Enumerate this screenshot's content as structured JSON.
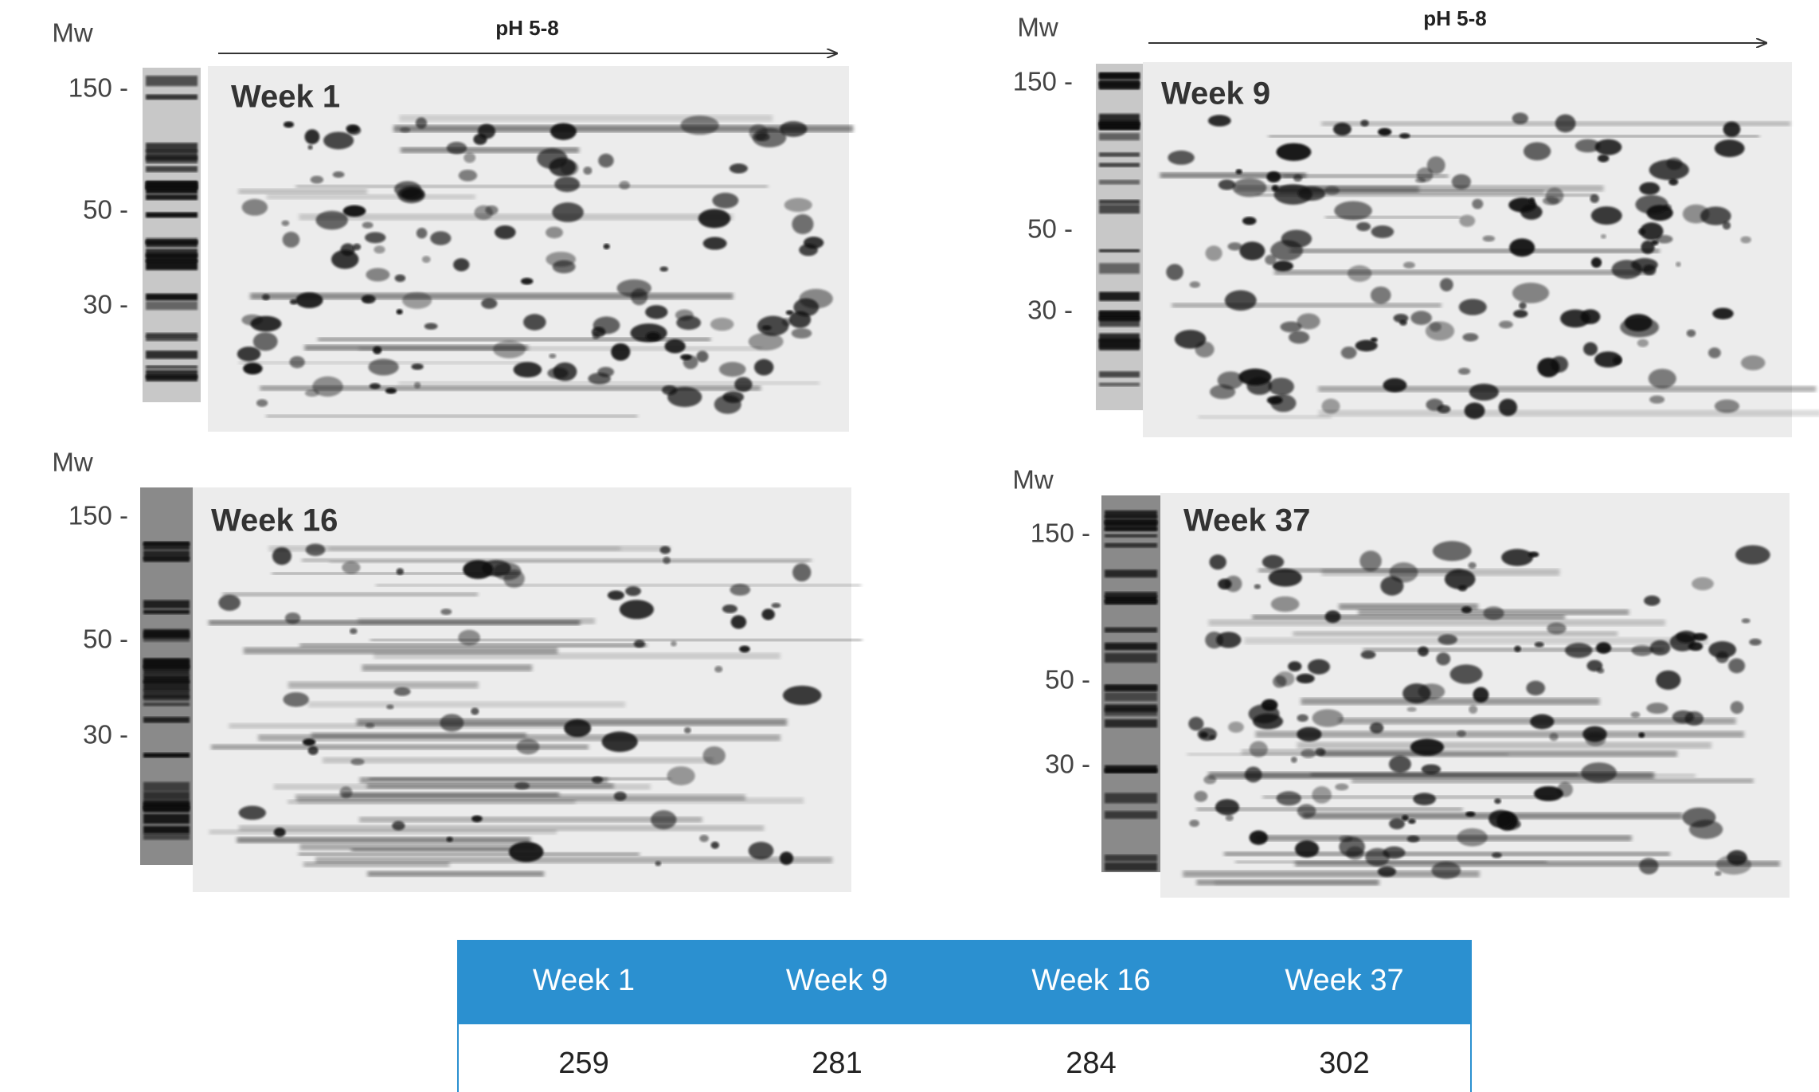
{
  "panels": [
    {
      "mw_label": "Mw",
      "ph_label": "pH 5-8",
      "title": "Week 1",
      "mw_ticks": [
        "150 -",
        "50 -",
        "30 -"
      ]
    },
    {
      "mw_label": "Mw",
      "ph_label": "pH 5-8",
      "title": "Week 9",
      "mw_ticks": [
        "150 -",
        "50 -",
        "30 -"
      ]
    },
    {
      "mw_label": "Mw",
      "title": "Week 16",
      "mw_ticks": [
        "150 -",
        "50 -",
        "30 -"
      ]
    },
    {
      "mw_label": "Mw",
      "title": "Week 37",
      "mw_ticks": [
        "150 -",
        "50 -",
        "30 -"
      ]
    }
  ],
  "table": {
    "header": [
      "Week 1",
      "Week 9",
      "Week 16",
      "Week 37"
    ],
    "rows": [
      [
        259,
        281,
        284,
        302
      ]
    ]
  }
}
